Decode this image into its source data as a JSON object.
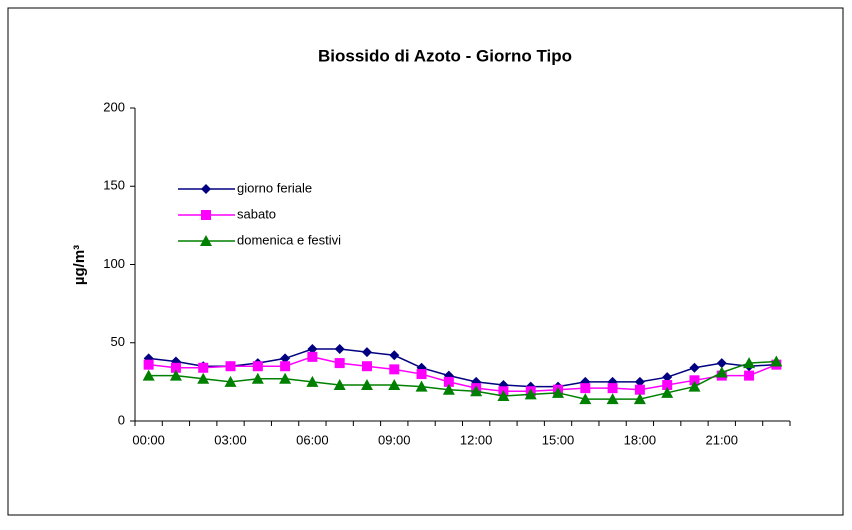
{
  "chart_data": {
    "type": "line",
    "title": "Biossido di Azoto - Giorno Tipo",
    "y_label": "µg/m³",
    "categories": [
      "00:00",
      null,
      null,
      "03:00",
      null,
      null,
      "06:00",
      null,
      null,
      "09:00",
      null,
      null,
      "12:00",
      null,
      null,
      "15:00",
      null,
      null,
      "18:00",
      null,
      null,
      "21:00",
      null,
      null
    ],
    "series": [
      {
        "name": "giorno feriale",
        "color": "#000080",
        "marker": "diamond",
        "values": [
          40,
          38,
          35,
          35,
          37,
          40,
          46,
          46,
          44,
          42,
          34,
          29,
          25,
          23,
          22,
          22,
          25,
          25,
          25,
          28,
          34,
          37,
          35,
          36
        ]
      },
      {
        "name": "sabato",
        "color": "#ff00ff",
        "marker": "square",
        "values": [
          36,
          34,
          34,
          35,
          35,
          35,
          41,
          37,
          35,
          33,
          30,
          25,
          21,
          19,
          19,
          20,
          21,
          21,
          20,
          23,
          26,
          29,
          29,
          36
        ]
      },
      {
        "name": "domenica e festivi",
        "color": "#008000",
        "marker": "triangle",
        "values": [
          29,
          29,
          27,
          25,
          27,
          27,
          25,
          23,
          23,
          23,
          22,
          20,
          19,
          16,
          17,
          18,
          14,
          14,
          14,
          18,
          22,
          31,
          37,
          38
        ]
      }
    ],
    "ylim": [
      0,
      200
    ],
    "yticks": [
      0,
      50,
      100,
      150,
      200
    ],
    "grid": false,
    "legend": "upper left"
  }
}
